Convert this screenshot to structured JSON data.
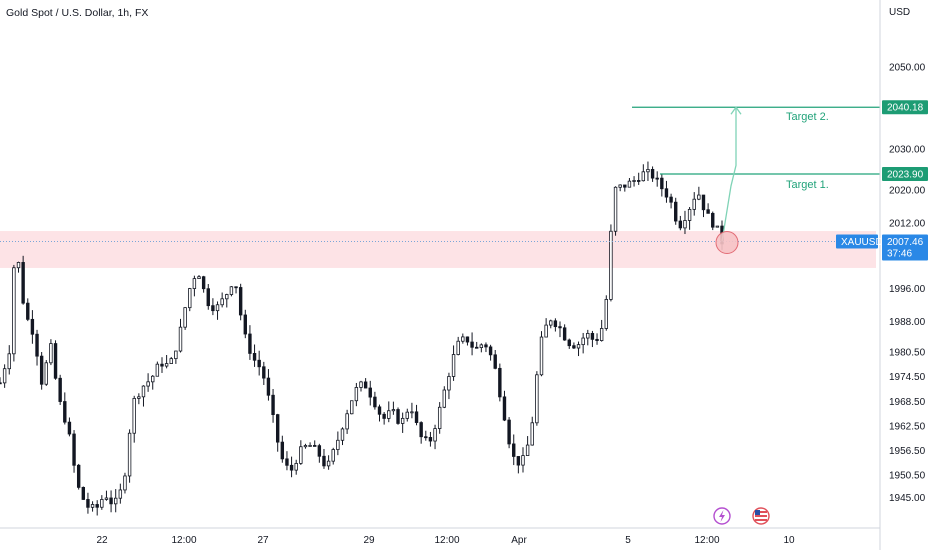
{
  "header": {
    "title": "Gold Spot / U.S. Dollar, 1h, FX"
  },
  "colors": {
    "candle": "#131722",
    "zone_fill": "#fde3e6",
    "target_line": "#22a37a",
    "tag_green": "#1d9c74",
    "symbol_tag": "#2a88e6",
    "price_dotted": "#7aa6d9",
    "circle_fill": "#f7c3c6",
    "circle_stroke": "#e0606a",
    "axis_line": "#d1d4dc",
    "flash_icon": "#b44fd0"
  },
  "icons": [
    "lightning-icon",
    "us-flag-icon"
  ],
  "chart_data": {
    "type": "candlestick",
    "title": "Gold Spot / U.S. Dollar, 1h, FX",
    "ylabel": "USD",
    "ylim": [
      1941.5,
      2055.6
    ],
    "y_ticks": [
      "2050.00",
      "2030.00",
      "2020.00",
      "2012.00",
      "1996.00",
      "1988.00",
      "1980.50",
      "1974.50",
      "1968.50",
      "1962.50",
      "1956.50",
      "1950.50",
      "1945.00"
    ],
    "x_ticks": [
      "22",
      "12:00",
      "27",
      "29",
      "12:00",
      "Apr",
      "5",
      "12:00",
      "10"
    ],
    "grid": false,
    "price_series": [
      [
        0,
        1973
      ],
      [
        1.5,
        1981
      ],
      [
        2.5,
        2008
      ],
      [
        4,
        1990
      ],
      [
        5.5,
        1985
      ],
      [
        7,
        1971
      ],
      [
        8,
        1984
      ],
      [
        9.5,
        1969
      ],
      [
        11,
        1962
      ],
      [
        12.5,
        1948
      ],
      [
        14,
        1943
      ],
      [
        15.5,
        1942
      ],
      [
        17,
        1946
      ],
      [
        18.5,
        1943
      ],
      [
        20,
        1948
      ],
      [
        21.5,
        1968
      ],
      [
        23,
        1972
      ],
      [
        24.5,
        1974
      ],
      [
        26,
        1978
      ],
      [
        27.5,
        1977
      ],
      [
        29,
        1984
      ],
      [
        30.5,
        1995
      ],
      [
        32,
        2001
      ],
      [
        33.5,
        1993
      ],
      [
        35,
        1991
      ],
      [
        36.5,
        1994
      ],
      [
        38,
        1999
      ],
      [
        39.5,
        1985
      ],
      [
        41,
        1979
      ],
      [
        42.5,
        1976
      ],
      [
        44,
        1966
      ],
      [
        45.5,
        1955
      ],
      [
        47,
        1951
      ],
      [
        48.5,
        1956
      ],
      [
        50,
        1958
      ],
      [
        51.5,
        1956
      ],
      [
        53,
        1952
      ],
      [
        54.5,
        1958
      ],
      [
        56,
        1965
      ],
      [
        57.5,
        1971
      ],
      [
        59,
        1973
      ],
      [
        60.5,
        1969
      ],
      [
        62,
        1964
      ],
      [
        63.5,
        1966
      ],
      [
        65,
        1963
      ],
      [
        66.5,
        1968
      ],
      [
        68,
        1960
      ],
      [
        69.5,
        1958
      ],
      [
        71,
        1965
      ],
      [
        72.5,
        1974
      ],
      [
        74,
        1982
      ],
      [
        75.5,
        1984
      ],
      [
        77,
        1981
      ],
      [
        78.5,
        1983
      ],
      [
        80,
        1978
      ],
      [
        81.5,
        1967
      ],
      [
        83,
        1955
      ],
      [
        84.5,
        1953
      ],
      [
        86,
        1960
      ],
      [
        87.5,
        1982
      ],
      [
        89,
        1989
      ],
      [
        90.5,
        1987
      ],
      [
        92,
        1983
      ],
      [
        93.5,
        1982
      ],
      [
        95,
        1985
      ],
      [
        96.5,
        1983
      ],
      [
        98,
        1988
      ],
      [
        99.5,
        2020
      ],
      [
        101,
        2021
      ],
      [
        102.5,
        2022
      ],
      [
        104,
        2024
      ],
      [
        105.5,
        2024
      ],
      [
        107,
        2021
      ],
      [
        108.5,
        2018
      ],
      [
        110,
        2011
      ],
      [
        111.5,
        2015
      ],
      [
        113,
        2020
      ],
      [
        114.5,
        2014
      ],
      [
        116,
        2011
      ],
      [
        117,
        2007.46
      ]
    ],
    "annotations": {
      "resistance_zone": [
        2001,
        2010
      ],
      "current_price": {
        "symbol": "XAUUSD",
        "value": "2007.46",
        "countdown": "37:46"
      },
      "targets": [
        {
          "label": "Target 1.",
          "value": "2023.90"
        },
        {
          "label": "Target 2.",
          "value": "2040.18"
        }
      ]
    }
  }
}
